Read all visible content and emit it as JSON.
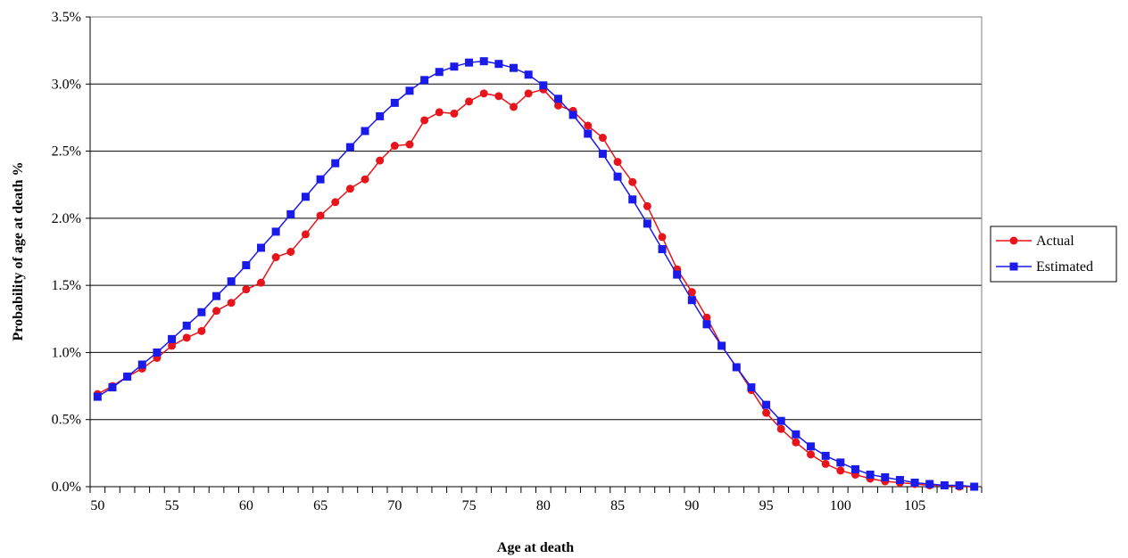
{
  "chart_data": {
    "type": "line",
    "title": "",
    "xlabel": "Age at death",
    "ylabel": "Probability of age at death %",
    "xlim": [
      50,
      109
    ],
    "ylim": [
      0,
      3.5
    ],
    "x_ticks": [
      50,
      55,
      60,
      65,
      70,
      75,
      80,
      85,
      90,
      95,
      100,
      105
    ],
    "x_tick_labels": [
      "50",
      "55",
      "60",
      "65",
      "70",
      "75",
      "80",
      "85",
      "90",
      "95",
      "100",
      "105"
    ],
    "y_ticks": [
      0,
      0.5,
      1.0,
      1.5,
      2.0,
      2.5,
      3.0,
      3.5
    ],
    "y_tick_labels": [
      "0.0%",
      "0.5%",
      "1.0%",
      "1.5%",
      "2.0%",
      "2.5%",
      "3.0%",
      "3.5%"
    ],
    "grid": "horizontal",
    "legend_position": "right",
    "x": [
      50,
      51,
      52,
      53,
      54,
      55,
      56,
      57,
      58,
      59,
      60,
      61,
      62,
      63,
      64,
      65,
      66,
      67,
      68,
      69,
      70,
      71,
      72,
      73,
      74,
      75,
      76,
      77,
      78,
      79,
      80,
      81,
      82,
      83,
      84,
      85,
      86,
      87,
      88,
      89,
      90,
      91,
      92,
      93,
      94,
      95,
      96,
      97,
      98,
      99,
      100,
      101,
      102,
      103,
      104,
      105,
      106,
      107,
      108,
      109
    ],
    "series": [
      {
        "name": "Actual",
        "color": "#e8141c",
        "marker": "circle",
        "values": [
          0.69,
          0.75,
          0.82,
          0.88,
          0.96,
          1.05,
          1.11,
          1.16,
          1.31,
          1.37,
          1.47,
          1.52,
          1.71,
          1.75,
          1.88,
          2.02,
          2.12,
          2.22,
          2.29,
          2.43,
          2.54,
          2.55,
          2.73,
          2.79,
          2.78,
          2.87,
          2.93,
          2.91,
          2.83,
          2.93,
          2.96,
          2.84,
          2.8,
          2.69,
          2.6,
          2.42,
          2.27,
          2.09,
          1.86,
          1.62,
          1.45,
          1.26,
          1.05,
          0.89,
          0.72,
          0.55,
          0.43,
          0.33,
          0.24,
          0.17,
          0.12,
          0.09,
          0.06,
          0.04,
          0.03,
          0.02,
          0.01,
          0.01,
          0.0,
          0.0
        ]
      },
      {
        "name": "Estimated",
        "color": "#1a1aeb",
        "marker": "square",
        "values": [
          0.67,
          0.74,
          0.82,
          0.91,
          1.0,
          1.1,
          1.2,
          1.3,
          1.42,
          1.53,
          1.65,
          1.78,
          1.9,
          2.03,
          2.16,
          2.29,
          2.41,
          2.53,
          2.65,
          2.76,
          2.86,
          2.95,
          3.03,
          3.09,
          3.13,
          3.16,
          3.17,
          3.15,
          3.12,
          3.07,
          2.99,
          2.89,
          2.77,
          2.63,
          2.48,
          2.31,
          2.14,
          1.96,
          1.77,
          1.58,
          1.39,
          1.21,
          1.05,
          0.89,
          0.74,
          0.61,
          0.49,
          0.39,
          0.3,
          0.23,
          0.18,
          0.13,
          0.09,
          0.07,
          0.05,
          0.03,
          0.02,
          0.01,
          0.01,
          0.0
        ]
      }
    ]
  }
}
